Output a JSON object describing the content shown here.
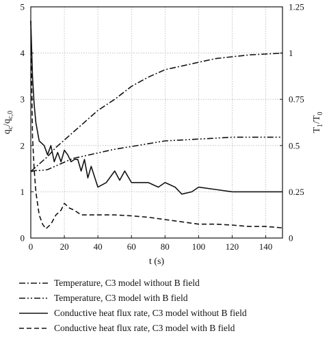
{
  "chart_data": {
    "type": "line",
    "xlabel": "t (s)",
    "ylabel_left": "q_c/q_c,0",
    "ylabel_right": "T_1/T_0",
    "xlim": [
      0,
      150
    ],
    "ylim_left": [
      0,
      5
    ],
    "ylim_right": [
      0,
      1.25
    ],
    "x_ticks": [
      0,
      20,
      40,
      60,
      80,
      100,
      120,
      140
    ],
    "y_ticks_left": [
      0,
      1,
      2,
      3,
      4,
      5
    ],
    "y_ticks_right": [
      "0",
      "0.25",
      "0.5",
      "0.75",
      "1",
      "1.25"
    ],
    "grid": true,
    "legend_position": "below",
    "series": [
      {
        "name": "Temperature, C3 model without B field",
        "axis": "right",
        "dash": "dashdot",
        "x": [
          0,
          5,
          10,
          15,
          20,
          25,
          30,
          35,
          40,
          50,
          60,
          70,
          80,
          90,
          100,
          110,
          120,
          130,
          140,
          150
        ],
        "y": [
          0.36,
          0.4,
          0.44,
          0.49,
          0.53,
          0.57,
          0.61,
          0.65,
          0.69,
          0.75,
          0.82,
          0.87,
          0.91,
          0.93,
          0.95,
          0.97,
          0.98,
          0.99,
          0.995,
          1.0
        ]
      },
      {
        "name": "Temperature, C3 model with B field",
        "axis": "right",
        "dash": "dashdotdot",
        "x": [
          0,
          3,
          6,
          10,
          15,
          20,
          25,
          30,
          40,
          50,
          60,
          70,
          80,
          90,
          100,
          110,
          120,
          130,
          140,
          150
        ],
        "y": [
          0.36,
          0.365,
          0.365,
          0.37,
          0.39,
          0.41,
          0.43,
          0.44,
          0.46,
          0.48,
          0.495,
          0.51,
          0.525,
          0.53,
          0.535,
          0.54,
          0.545,
          0.545,
          0.545,
          0.545
        ]
      },
      {
        "name": "Conductive heat flux rate, C3 model without B field",
        "axis": "left",
        "dash": "solid",
        "x": [
          0,
          1,
          2,
          3,
          5,
          8,
          10,
          12,
          14,
          16,
          18,
          20,
          22,
          24,
          26,
          28,
          30,
          32,
          34,
          36,
          40,
          45,
          50,
          53,
          56,
          60,
          70,
          76,
          80,
          86,
          90,
          96,
          100,
          110,
          120,
          130,
          140,
          150
        ],
        "y": [
          4.7,
          3.5,
          2.9,
          2.5,
          2.1,
          2.0,
          1.8,
          2.0,
          1.65,
          1.85,
          1.65,
          1.9,
          1.8,
          1.65,
          1.7,
          1.7,
          1.45,
          1.7,
          1.3,
          1.55,
          1.1,
          1.2,
          1.45,
          1.25,
          1.45,
          1.2,
          1.2,
          1.1,
          1.2,
          1.1,
          0.95,
          1.0,
          1.1,
          1.05,
          1.0,
          1.0,
          1.0,
          1.0
        ]
      },
      {
        "name": "Conductive heat flux rate, C3 model with B field",
        "axis": "left",
        "dash": "dashed",
        "x": [
          0,
          1,
          2,
          3,
          5,
          7,
          9,
          12,
          15,
          18,
          20,
          23,
          26,
          30,
          35,
          40,
          50,
          60,
          70,
          80,
          90,
          100,
          110,
          120,
          130,
          140,
          150
        ],
        "y": [
          4.7,
          2.2,
          1.5,
          1.0,
          0.5,
          0.3,
          0.2,
          0.3,
          0.5,
          0.6,
          0.75,
          0.65,
          0.6,
          0.5,
          0.5,
          0.5,
          0.5,
          0.48,
          0.45,
          0.4,
          0.35,
          0.3,
          0.3,
          0.28,
          0.25,
          0.25,
          0.22
        ]
      }
    ]
  }
}
